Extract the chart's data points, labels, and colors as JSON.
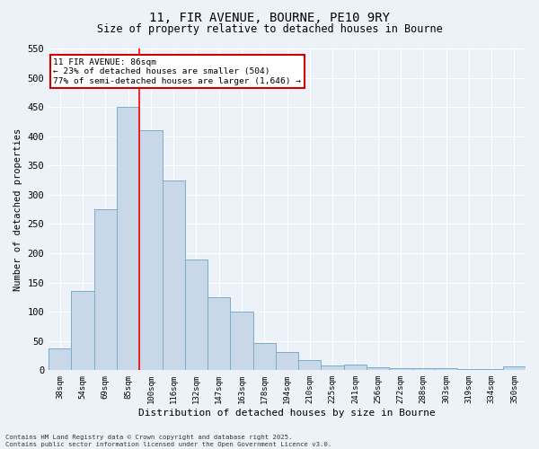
{
  "title": "11, FIR AVENUE, BOURNE, PE10 9RY",
  "subtitle": "Size of property relative to detached houses in Bourne",
  "xlabel": "Distribution of detached houses by size in Bourne",
  "ylabel": "Number of detached properties",
  "categories": [
    "38sqm",
    "54sqm",
    "69sqm",
    "85sqm",
    "100sqm",
    "116sqm",
    "132sqm",
    "147sqm",
    "163sqm",
    "178sqm",
    "194sqm",
    "210sqm",
    "225sqm",
    "241sqm",
    "256sqm",
    "272sqm",
    "288sqm",
    "303sqm",
    "319sqm",
    "334sqm",
    "350sqm"
  ],
  "values": [
    37,
    135,
    275,
    450,
    410,
    325,
    190,
    125,
    100,
    46,
    31,
    18,
    8,
    9,
    5,
    4,
    4,
    3,
    2,
    2,
    6
  ],
  "bar_color": "#c8d8e8",
  "bar_edge_color": "#7aadcc",
  "red_line_index": 3,
  "annotation_title": "11 FIR AVENUE: 86sqm",
  "annotation_line1": "← 23% of detached houses are smaller (504)",
  "annotation_line2": "77% of semi-detached houses are larger (1,646) →",
  "annotation_box_color": "#ffffff",
  "annotation_box_edge": "#cc0000",
  "ylim": [
    0,
    550
  ],
  "yticks": [
    0,
    50,
    100,
    150,
    200,
    250,
    300,
    350,
    400,
    450,
    500,
    550
  ],
  "footer": "Contains HM Land Registry data © Crown copyright and database right 2025.\nContains public sector information licensed under the Open Government Licence v3.0.",
  "background_color": "#edf2f9",
  "plot_background": "#edf2f9"
}
